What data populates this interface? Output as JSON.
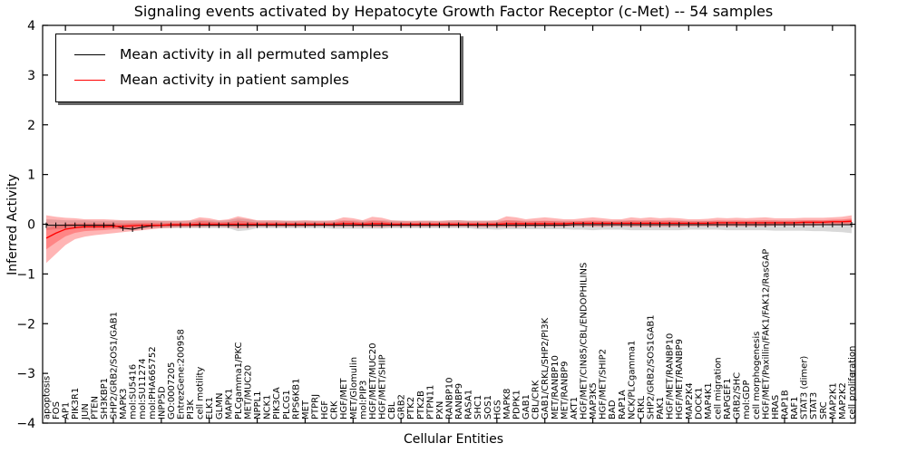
{
  "title": "Signaling events activated by Hepatocyte Growth Factor Receptor (c-Met) -- 54 samples",
  "legend": {
    "items": [
      {
        "label": "Mean activity in all permuted samples",
        "color": "#000000"
      },
      {
        "label": "Mean activity in patient samples",
        "color": "#ff0000"
      }
    ]
  },
  "axes": {
    "xlabel": "Cellular Entities",
    "ylabel": "Inferred Activity",
    "yticks": [
      4,
      3,
      2,
      1,
      0,
      -1,
      -2,
      -3,
      -4
    ],
    "ylim": [
      -4,
      4
    ]
  },
  "colors": {
    "permuted_line": "#000000",
    "patient_line": "#ff0000",
    "permuted_band": "#aaaaaa",
    "patient_band": "#ff2a2a",
    "background": "#ffffff"
  },
  "chart_data": {
    "type": "line",
    "title": "Signaling events activated by Hepatocyte Growth Factor Receptor (c-Met) -- 54 samples",
    "xlabel": "Cellular Entities",
    "ylabel": "Inferred Activity",
    "ylim": [
      -4,
      4
    ],
    "grid": false,
    "legend_position": "upper left",
    "categories": [
      "apoptosis",
      "FOS",
      "AP1",
      "PIK3R1",
      "JUN",
      "PTEN",
      "SH3KBP1",
      "SHP2/GRB2/SOS1/GAB1",
      "MAPK3",
      "mol:SU5416",
      "mol:SU11274",
      "mol:PHA665752",
      "INPP5D",
      "GO:0007205",
      "EntrezGene:200958",
      "PI3K",
      "cell motility",
      "ELK1",
      "GLMN",
      "MAPK1",
      "PLCgamma1/PKC",
      "MET/MUC20",
      "NPPL1",
      "NCK1",
      "PIK3CA",
      "PLCG1",
      "RPS6KB1",
      "MET",
      "PTPRJ",
      "HGF",
      "CRK",
      "HGF/MET",
      "MET/Glomulin",
      "mol:PIP3",
      "HGF/MET/MUC20",
      "HGF/MET/SHIP",
      "CBL",
      "GRB2",
      "PTK2",
      "PTK2B",
      "PTPN11",
      "PXN",
      "RANBP10",
      "RANBP9",
      "RASA1",
      "SHC1",
      "SOS1",
      "HGS",
      "MAPK8",
      "PDPK1",
      "GAB1",
      "CBL/CRK",
      "GAB1/CRKL/SHP2/PI3K",
      "MET/RANBP10",
      "MET/RANBP9",
      "AKT1",
      "HGF/MET/CIN85/CBL/ENDOPHILINS",
      "MAP3K5",
      "HGF/MET/SHIP2",
      "BAD",
      "RAP1A",
      "NCK/PLCgamma1",
      "CRKL",
      "SHP2/GRB2/SOS1GAB1",
      "PAK1",
      "HGF/MET/RANBP10",
      "HGF/MET/RANBP9",
      "MAP2K4",
      "DOCK1",
      "MAP4K1",
      "cell migration",
      "RAPGEF1",
      "GRB2/SHC",
      "mol:GDP",
      "cell morphogenesis",
      "HGF/MET/Paxillin/FAK1/FAK12/RasGAP",
      "HRAS",
      "RAP1B",
      "RAF1",
      "STAT3 (dimer)",
      "STAT3",
      "SRC",
      "MAP2K1",
      "MAP2K2",
      "cell proliferation"
    ],
    "series": [
      {
        "name": "Mean activity in all permuted samples",
        "color": "#000000",
        "values": [
          -0.02,
          -0.02,
          -0.02,
          -0.02,
          -0.02,
          -0.02,
          -0.02,
          -0.02,
          -0.08,
          -0.1,
          -0.06,
          -0.03,
          -0.02,
          -0.02,
          -0.02,
          -0.02,
          -0.02,
          -0.02,
          -0.02,
          -0.02,
          -0.02,
          -0.02,
          -0.02,
          -0.02,
          -0.02,
          -0.02,
          -0.02,
          -0.02,
          -0.02,
          -0.02,
          -0.02,
          -0.02,
          -0.02,
          -0.02,
          -0.02,
          -0.02,
          -0.02,
          -0.02,
          -0.02,
          -0.02,
          -0.02,
          -0.02,
          -0.02,
          -0.02,
          -0.02,
          -0.02,
          -0.02,
          -0.02,
          -0.02,
          -0.02,
          -0.02,
          -0.02,
          -0.02,
          -0.02,
          -0.02,
          -0.01,
          -0.01,
          -0.01,
          -0.01,
          -0.01,
          -0.01,
          -0.01,
          -0.01,
          -0.01,
          -0.01,
          -0.01,
          -0.01,
          -0.01,
          -0.01,
          -0.01,
          -0.01,
          -0.01,
          -0.01,
          -0.01,
          -0.01,
          -0.01,
          -0.01,
          -0.01,
          -0.01,
          -0.01,
          -0.01,
          -0.01,
          -0.01,
          -0.01,
          -0.01
        ]
      },
      {
        "name": "Mean activity in patient samples",
        "color": "#ff0000",
        "values": [
          -0.28,
          -0.18,
          -0.1,
          -0.07,
          -0.05,
          -0.05,
          -0.05,
          -0.04,
          -0.04,
          -0.03,
          -0.02,
          -0.02,
          -0.02,
          -0.01,
          -0.01,
          -0.01,
          0,
          0,
          0,
          0,
          0,
          0,
          0,
          0,
          0,
          0,
          0,
          0,
          0,
          0,
          0,
          0.01,
          0.01,
          0,
          0.01,
          0.01,
          0,
          0,
          0,
          0,
          0,
          0,
          0,
          0,
          0,
          0,
          0,
          0,
          0.01,
          0.01,
          0.01,
          0.01,
          0.01,
          0.01,
          0.01,
          0.02,
          0.02,
          0.02,
          0.02,
          0.02,
          0.02,
          0.02,
          0.02,
          0.02,
          0.02,
          0.02,
          0.02,
          0.02,
          0.02,
          0.02,
          0.03,
          0.03,
          0.03,
          0.03,
          0.03,
          0.03,
          0.03,
          0.03,
          0.03,
          0.04,
          0.04,
          0.04,
          0.05,
          0.05,
          0.06
        ]
      }
    ],
    "bands": [
      {
        "name": "permuted sample range",
        "color": "#aaaaaa",
        "opacity": 0.45,
        "upper": [
          0.1,
          0.09,
          0.08,
          0.08,
          0.08,
          0.07,
          0.07,
          0.07,
          0.07,
          0.07,
          0.07,
          0.07,
          0.07,
          0.07,
          0.07,
          0.07,
          0.09,
          0.08,
          0.07,
          0.08,
          0.12,
          0.1,
          0.07,
          0.07,
          0.07,
          0.07,
          0.07,
          0.07,
          0.07,
          0.07,
          0.07,
          0.08,
          0.08,
          0.07,
          0.08,
          0.08,
          0.07,
          0.07,
          0.06,
          0.07,
          0.07,
          0.06,
          0.07,
          0.08,
          0.07,
          0.07,
          0.07,
          0.07,
          0.08,
          0.08,
          0.07,
          0.07,
          0.07,
          0.07,
          0.07,
          0.07,
          0.07,
          0.07,
          0.07,
          0.07,
          0.08,
          0.08,
          0.08,
          0.08,
          0.08,
          0.08,
          0.08,
          0.07,
          0.07,
          0.07,
          0.07,
          0.07,
          0.07,
          0.07,
          0.07,
          0.07,
          0.08,
          0.07,
          0.08,
          0.07,
          0.08,
          0.07,
          0.08,
          0.08,
          0.09
        ],
        "lower": [
          -0.12,
          -0.1,
          -0.09,
          -0.08,
          -0.08,
          -0.08,
          -0.08,
          -0.08,
          -0.1,
          -0.12,
          -0.1,
          -0.08,
          -0.08,
          -0.08,
          -0.08,
          -0.08,
          -0.08,
          -0.08,
          -0.08,
          -0.08,
          -0.14,
          -0.12,
          -0.08,
          -0.08,
          -0.08,
          -0.08,
          -0.08,
          -0.08,
          -0.08,
          -0.08,
          -0.09,
          -0.09,
          -0.09,
          -0.09,
          -0.09,
          -0.09,
          -0.08,
          -0.08,
          -0.08,
          -0.08,
          -0.08,
          -0.08,
          -0.08,
          -0.08,
          -0.08,
          -0.1,
          -0.1,
          -0.11,
          -0.1,
          -0.1,
          -0.1,
          -0.1,
          -0.1,
          -0.1,
          -0.1,
          -0.11,
          -0.11,
          -0.12,
          -0.11,
          -0.11,
          -0.11,
          -0.12,
          -0.12,
          -0.12,
          -0.12,
          -0.12,
          -0.12,
          -0.11,
          -0.11,
          -0.11,
          -0.11,
          -0.12,
          -0.12,
          -0.12,
          -0.12,
          -0.12,
          -0.13,
          -0.13,
          -0.13,
          -0.13,
          -0.14,
          -0.14,
          -0.15,
          -0.16,
          -0.18
        ]
      },
      {
        "name": "patient sample range",
        "color": "#ff2a2a",
        "opacity": 0.35,
        "upper": [
          0.18,
          0.15,
          0.13,
          0.12,
          0.1,
          0.1,
          0.1,
          0.09,
          0.08,
          0.08,
          0.08,
          0.08,
          0.07,
          0.07,
          0.07,
          0.08,
          0.14,
          0.12,
          0.08,
          0.1,
          0.16,
          0.12,
          0.08,
          0.08,
          0.08,
          0.07,
          0.07,
          0.08,
          0.07,
          0.07,
          0.08,
          0.14,
          0.12,
          0.08,
          0.15,
          0.13,
          0.08,
          0.07,
          0.07,
          0.07,
          0.07,
          0.07,
          0.08,
          0.08,
          0.07,
          0.07,
          0.07,
          0.08,
          0.16,
          0.14,
          0.1,
          0.12,
          0.14,
          0.12,
          0.1,
          0.1,
          0.12,
          0.14,
          0.12,
          0.1,
          0.1,
          0.14,
          0.12,
          0.14,
          0.12,
          0.13,
          0.12,
          0.1,
          0.1,
          0.11,
          0.13,
          0.12,
          0.13,
          0.12,
          0.13,
          0.14,
          0.12,
          0.12,
          0.12,
          0.13,
          0.13,
          0.13,
          0.14,
          0.15,
          0.18
        ],
        "lower": [
          -0.78,
          -0.6,
          -0.42,
          -0.3,
          -0.25,
          -0.22,
          -0.2,
          -0.18,
          -0.16,
          -0.14,
          -0.12,
          -0.1,
          -0.08,
          -0.07,
          -0.06,
          -0.06,
          -0.06,
          -0.05,
          -0.05,
          -0.06,
          -0.08,
          -0.07,
          -0.05,
          -0.05,
          -0.05,
          -0.05,
          -0.05,
          -0.05,
          -0.04,
          -0.04,
          -0.05,
          -0.05,
          -0.05,
          -0.05,
          -0.06,
          -0.06,
          -0.05,
          -0.05,
          -0.05,
          -0.05,
          -0.05,
          -0.05,
          -0.05,
          -0.05,
          -0.05,
          -0.06,
          -0.06,
          -0.06,
          -0.06,
          -0.06,
          -0.05,
          -0.05,
          -0.05,
          -0.05,
          -0.05,
          -0.04,
          -0.04,
          -0.05,
          -0.05,
          -0.04,
          -0.04,
          -0.05,
          -0.05,
          -0.05,
          -0.05,
          -0.05,
          -0.05,
          -0.04,
          -0.04,
          -0.04,
          -0.04,
          -0.04,
          -0.04,
          -0.04,
          -0.04,
          -0.04,
          -0.03,
          -0.03,
          -0.03,
          -0.03,
          -0.03,
          -0.02,
          -0.02,
          -0.02,
          -0.02
        ]
      }
    ]
  }
}
